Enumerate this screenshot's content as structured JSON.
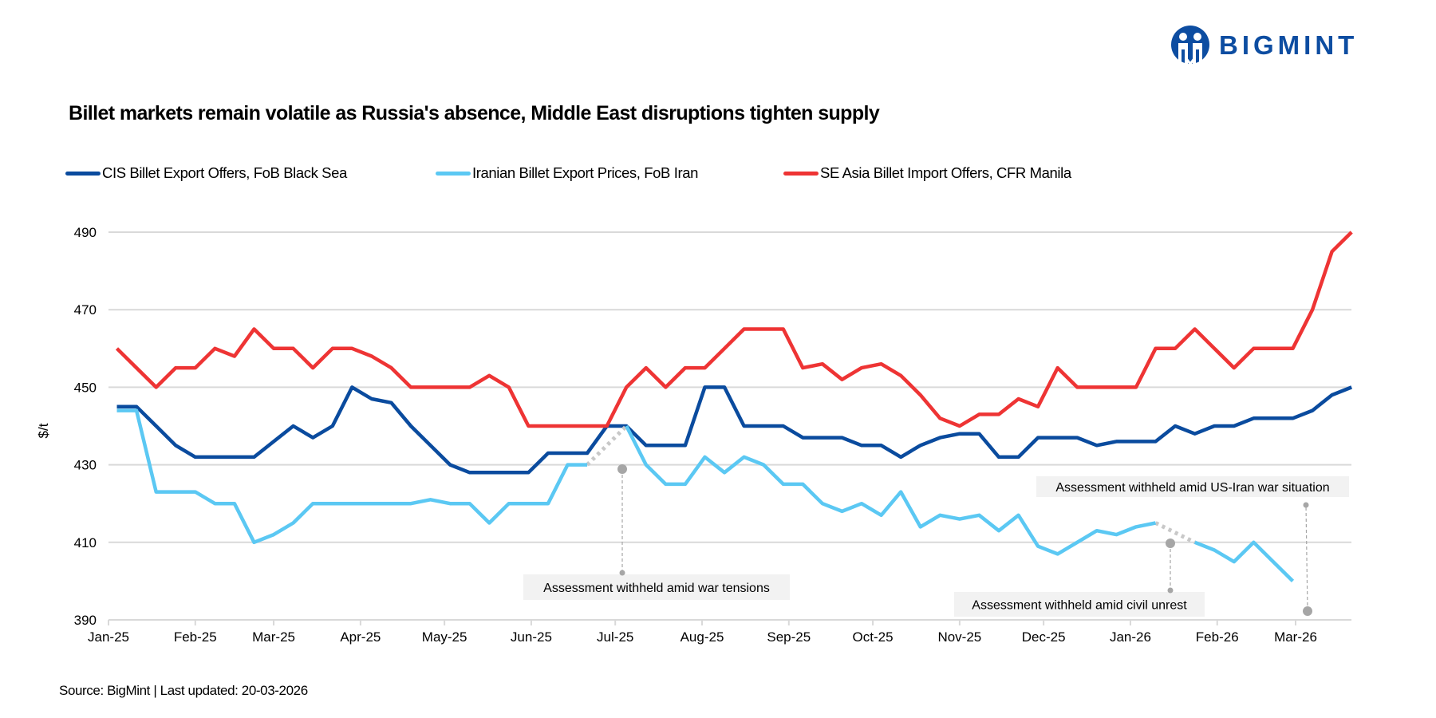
{
  "logo": {
    "text": "BIGMINT",
    "color": "#0d4da1"
  },
  "footer": "Source: BigMint | Last updated: 20-03-2026",
  "chart_data": {
    "type": "line",
    "title": "Billet markets remain volatile as Russia's absence, Middle East disruptions tighten supply",
    "xlabel": "",
    "ylabel": "$/t",
    "ylim": [
      390,
      490
    ],
    "yticks": [
      "390",
      "410",
      "430",
      "450",
      "470",
      "490"
    ],
    "grid": true,
    "legend_position": "top",
    "xticks": [
      {
        "date": "2025-01-01",
        "label": "Jan-25"
      },
      {
        "date": "2025-02-01",
        "label": "Feb-25"
      },
      {
        "date": "2025-03-01",
        "label": "Mar-25"
      },
      {
        "date": "2025-04-01",
        "label": "Apr-25"
      },
      {
        "date": "2025-05-01",
        "label": "May-25"
      },
      {
        "date": "2025-06-01",
        "label": "Jun-25"
      },
      {
        "date": "2025-07-01",
        "label": "Jul-25"
      },
      {
        "date": "2025-08-01",
        "label": "Aug-25"
      },
      {
        "date": "2025-09-01",
        "label": "Sep-25"
      },
      {
        "date": "2025-10-01",
        "label": "Oct-25"
      },
      {
        "date": "2025-11-01",
        "label": "Nov-25"
      },
      {
        "date": "2025-12-01",
        "label": "Dec-25"
      },
      {
        "date": "2026-01-01",
        "label": "Jan-26"
      },
      {
        "date": "2026-02-01",
        "label": "Feb-26"
      },
      {
        "date": "2026-03-01",
        "label": "Mar-26"
      }
    ],
    "x": [
      "2025-01-04",
      "2025-01-11",
      "2025-01-18",
      "2025-01-25",
      "2025-02-01",
      "2025-02-08",
      "2025-02-15",
      "2025-02-22",
      "2025-03-01",
      "2025-03-08",
      "2025-03-15",
      "2025-03-22",
      "2025-03-29",
      "2025-04-05",
      "2025-04-12",
      "2025-04-19",
      "2025-04-26",
      "2025-05-03",
      "2025-05-10",
      "2025-05-17",
      "2025-05-24",
      "2025-05-31",
      "2025-06-07",
      "2025-06-14",
      "2025-06-21",
      "2025-06-28",
      "2025-07-05",
      "2025-07-12",
      "2025-07-19",
      "2025-07-26",
      "2025-08-02",
      "2025-08-09",
      "2025-08-16",
      "2025-08-23",
      "2025-08-30",
      "2025-09-06",
      "2025-09-13",
      "2025-09-20",
      "2025-09-27",
      "2025-10-04",
      "2025-10-11",
      "2025-10-18",
      "2025-10-25",
      "2025-11-01",
      "2025-11-08",
      "2025-11-15",
      "2025-11-22",
      "2025-11-29",
      "2025-12-06",
      "2025-12-13",
      "2025-12-20",
      "2025-12-27",
      "2026-01-03",
      "2026-01-10",
      "2026-01-17",
      "2026-01-24",
      "2026-01-31",
      "2026-02-07",
      "2026-02-14",
      "2026-02-21",
      "2026-02-28",
      "2026-03-07",
      "2026-03-14",
      "2026-03-21"
    ],
    "series": [
      {
        "name": "CIS Billet Export Offers, FoB Black Sea",
        "color": "#0a4b9e",
        "values": [
          445,
          445,
          440,
          435,
          432,
          432,
          432,
          432,
          436,
          440,
          437,
          440,
          450,
          447,
          446,
          440,
          435,
          430,
          428,
          428,
          428,
          428,
          433,
          433,
          433,
          440,
          440,
          435,
          435,
          435,
          450,
          450,
          440,
          440,
          440,
          437,
          437,
          437,
          435,
          435,
          432,
          435,
          437,
          438,
          438,
          432,
          432,
          437,
          437,
          437,
          435,
          436,
          436,
          436,
          440,
          438,
          440,
          440,
          442,
          442,
          442,
          444,
          448,
          450
        ]
      },
      {
        "name": "Iranian Billet Export Prices, FoB Iran",
        "color": "#5bc8f3",
        "values": [
          444,
          444,
          423,
          423,
          423,
          420,
          420,
          410,
          412,
          415,
          420,
          420,
          420,
          420,
          420,
          420,
          421,
          420,
          420,
          415,
          420,
          420,
          420,
          430,
          430,
          null,
          440,
          430,
          425,
          425,
          432,
          428,
          432,
          430,
          425,
          425,
          420,
          418,
          420,
          417,
          423,
          414,
          417,
          416,
          417,
          413,
          417,
          409,
          407,
          410,
          413,
          412,
          414,
          415,
          null,
          410,
          408,
          405,
          410,
          405,
          400,
          null,
          null,
          null
        ]
      },
      {
        "name": "SE Asia Billet Import Offers, CFR Manila",
        "color": "#ee3434",
        "values": [
          460,
          455,
          450,
          455,
          455,
          460,
          458,
          465,
          460,
          460,
          455,
          460,
          460,
          458,
          455,
          450,
          450,
          450,
          450,
          453,
          450,
          440,
          440,
          440,
          440,
          440,
          450,
          455,
          450,
          455,
          455,
          460,
          465,
          465,
          465,
          455,
          456,
          452,
          455,
          456,
          453,
          448,
          442,
          440,
          443,
          443,
          447,
          445,
          455,
          450,
          450,
          450,
          450,
          460,
          460,
          465,
          460,
          455,
          460,
          460,
          460,
          470,
          485,
          490
        ]
      }
    ],
    "annotations": [
      {
        "text": "Assessment withheld amid  war tensions"
      },
      {
        "text": "Assessment withheld amid civil unrest"
      },
      {
        "text": "Assessment withheld amid US-Iran war situation"
      }
    ]
  }
}
